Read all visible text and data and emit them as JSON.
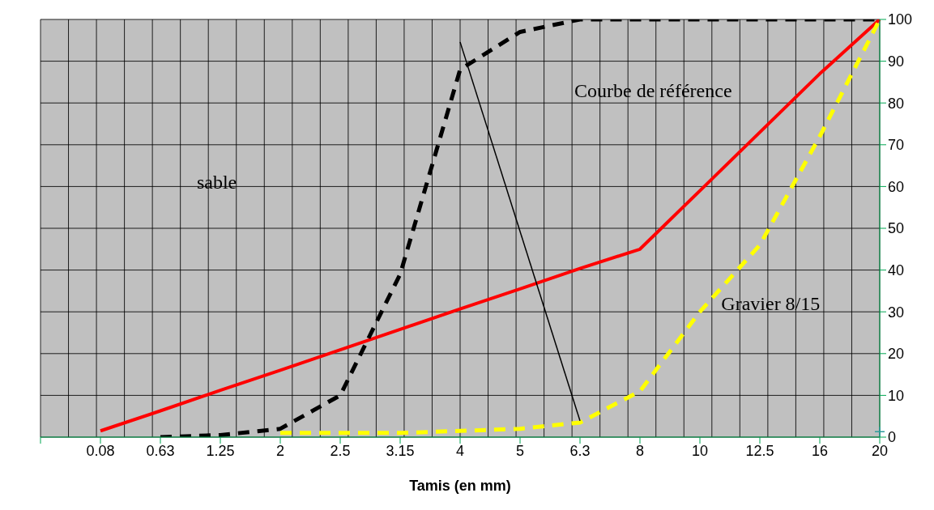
{
  "chart_data": {
    "type": "line",
    "xlabel": "Tamis (en mm)",
    "categories": [
      null,
      "0.08",
      "0.63",
      "1.25",
      "2",
      "2.5",
      "3.15",
      "4",
      "5",
      "6.3",
      "8",
      "10",
      "12.5",
      "16",
      "20"
    ],
    "ylim": [
      0,
      100
    ],
    "yticks": [
      0,
      10,
      20,
      30,
      40,
      50,
      60,
      70,
      80,
      90,
      100
    ],
    "grid": true,
    "marker": "none",
    "series": [
      {
        "color": "#ff0000",
        "line_style": "solid",
        "values": [
          null,
          1.5,
          6.3,
          11.2,
          16,
          20.9,
          25.8,
          30.7,
          35.5,
          40.4,
          45,
          59,
          73,
          87,
          100
        ]
      },
      {
        "color": "#000000",
        "line_style": "dashed",
        "values": [
          null,
          null,
          0,
          0.5,
          2,
          10,
          39,
          88,
          97,
          100,
          100,
          100,
          100,
          100,
          100
        ]
      },
      {
        "color": "#ffff00",
        "line_style": "dashed",
        "values": [
          null,
          null,
          null,
          null,
          1,
          1,
          1,
          1.5,
          2,
          3.5,
          11,
          30,
          46,
          72,
          100
        ]
      },
      {
        "color": "#000000",
        "line_style": "solid",
        "values": [
          null,
          null,
          null,
          null,
          null,
          null,
          null,
          94.6,
          null,
          3.9,
          null,
          null,
          null,
          null,
          null
        ]
      },
      {
        "type": "scatter",
        "marker": "cross",
        "color": "#2e9c9c",
        "values": [
          null,
          null,
          null,
          null,
          null,
          null,
          null,
          null,
          null,
          null,
          null,
          null,
          null,
          null,
          1.3
        ]
      }
    ],
    "annotations": [
      "sable",
      "Courbe de référence",
      "Gravier 8/15"
    ]
  }
}
